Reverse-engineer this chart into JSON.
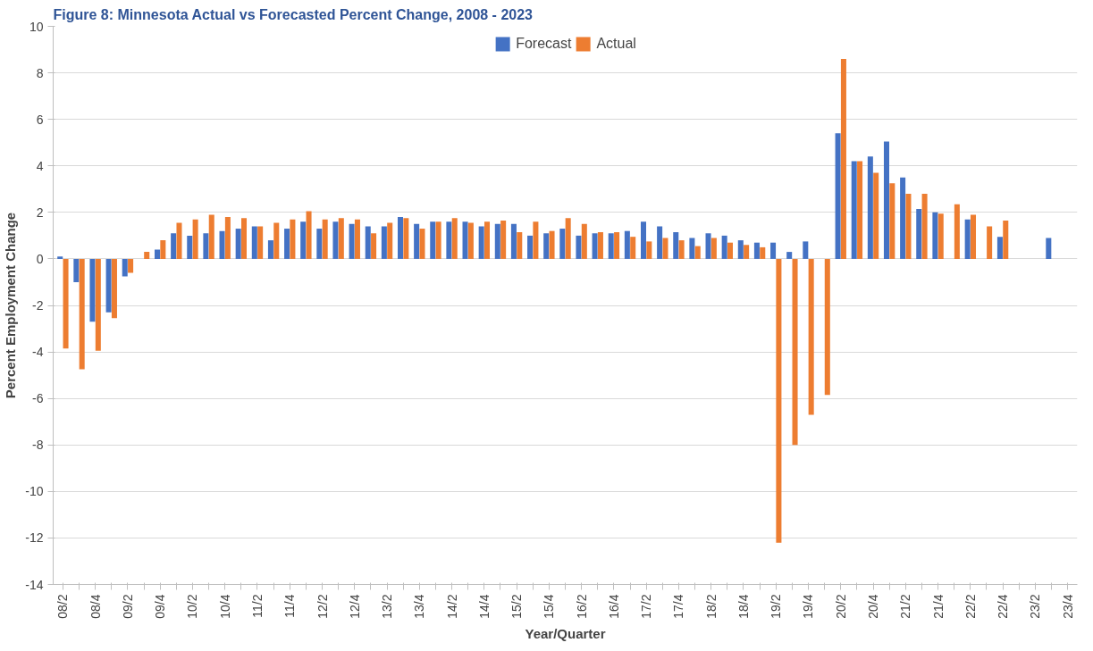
{
  "chart_data": {
    "type": "bar",
    "title": "Figure 8: Minnesota Actual vs Forecasted Percent Change, 2008 - 2023",
    "xlabel": "Year/Quarter",
    "ylabel": "Percent Employment Change",
    "categories": [
      "08/2",
      null,
      "08/4",
      null,
      "09/2",
      null,
      "09/4",
      null,
      "10/2",
      null,
      "10/4",
      null,
      "11/2",
      null,
      "11/4",
      null,
      "12/2",
      null,
      "12/4",
      null,
      "13/2",
      null,
      "13/4",
      null,
      "14/2",
      null,
      "14/4",
      null,
      "15/2",
      null,
      "15/4",
      null,
      "16/2",
      null,
      "16/4",
      null,
      "17/2",
      null,
      "17/4",
      null,
      "18/2",
      null,
      "18/4",
      null,
      "19/2",
      null,
      "19/4",
      null,
      "20/2",
      null,
      "20/4",
      null,
      "21/2",
      null,
      "21/4",
      null,
      "22/2",
      null,
      "22/4",
      null,
      "23/2",
      null,
      "23/4"
    ],
    "series": [
      {
        "name": "Forecast",
        "color": "#4472c4",
        "values": [
          0.1,
          -1.0,
          -2.7,
          -2.3,
          -0.75,
          null,
          0.4,
          1.1,
          1.0,
          1.1,
          1.2,
          1.3,
          1.4,
          0.8,
          1.3,
          1.6,
          1.3,
          1.6,
          1.5,
          1.4,
          1.4,
          1.8,
          1.5,
          1.6,
          1.6,
          1.6,
          1.4,
          1.5,
          1.5,
          1.0,
          1.1,
          1.3,
          1.0,
          1.1,
          1.1,
          1.2,
          1.6,
          1.4,
          1.15,
          0.9,
          1.1,
          1.0,
          0.8,
          0.7,
          0.7,
          0.3,
          0.75,
          null,
          5.4,
          4.2,
          4.4,
          5.05,
          3.5,
          2.15,
          2.0,
          null,
          1.7,
          null,
          0.95,
          null,
          null,
          0.9,
          null
        ]
      },
      {
        "name": "Actual",
        "color": "#ed7d31",
        "values": [
          -3.85,
          -4.75,
          -3.95,
          -2.55,
          -0.6,
          0.3,
          0.8,
          1.55,
          1.7,
          1.9,
          1.8,
          1.75,
          1.4,
          1.55,
          1.7,
          2.05,
          1.7,
          1.75,
          1.7,
          1.1,
          1.55,
          1.75,
          1.3,
          1.6,
          1.75,
          1.55,
          1.6,
          1.65,
          1.15,
          1.6,
          1.2,
          1.75,
          1.5,
          1.15,
          1.15,
          0.95,
          0.75,
          0.9,
          0.8,
          0.55,
          0.9,
          0.7,
          0.6,
          0.5,
          -12.2,
          -8.0,
          -6.7,
          -5.85,
          8.6,
          4.2,
          3.7,
          3.25,
          2.8,
          2.8,
          1.95,
          2.35,
          1.9,
          1.4,
          1.65,
          null,
          null,
          null,
          null
        ]
      }
    ],
    "ylim": [
      -14,
      10
    ],
    "yticks": [
      -14,
      -12,
      -10,
      -8,
      -6,
      -4,
      -2,
      0,
      2,
      4,
      6,
      8,
      10
    ],
    "grid": "y",
    "legend": "top"
  }
}
